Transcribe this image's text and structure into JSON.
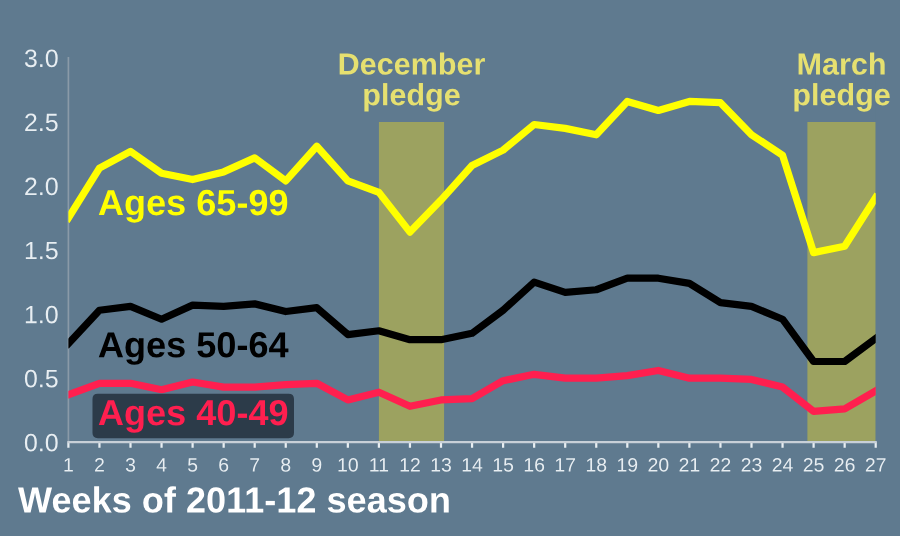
{
  "chart_data": {
    "type": "line",
    "xlabel": "Weeks of 2011-12 season",
    "x": [
      1,
      2,
      3,
      4,
      5,
      6,
      7,
      8,
      9,
      10,
      11,
      12,
      13,
      14,
      15,
      16,
      17,
      18,
      19,
      20,
      21,
      22,
      23,
      24,
      25,
      26,
      27
    ],
    "series": [
      {
        "name": "Ages 65-99",
        "color": "#ffff00",
        "values": [
          1.75,
          2.14,
          2.27,
          2.1,
          2.05,
          2.11,
          2.22,
          2.04,
          2.31,
          2.04,
          1.95,
          1.64,
          1.89,
          2.16,
          2.28,
          2.48,
          2.45,
          2.4,
          2.66,
          2.59,
          2.66,
          2.65,
          2.4,
          2.24,
          1.48,
          1.53,
          1.91
        ]
      },
      {
        "name": "Ages 50-64",
        "color": "#000000",
        "values": [
          0.77,
          1.03,
          1.06,
          0.96,
          1.07,
          1.06,
          1.08,
          1.02,
          1.05,
          0.84,
          0.87,
          0.8,
          0.8,
          0.85,
          1.03,
          1.25,
          1.17,
          1.19,
          1.28,
          1.28,
          1.24,
          1.09,
          1.06,
          0.96,
          0.63,
          0.63,
          0.81
        ]
      },
      {
        "name": "Ages 40-49",
        "color": "#ff1f4f",
        "values": [
          0.37,
          0.46,
          0.46,
          0.41,
          0.47,
          0.43,
          0.43,
          0.45,
          0.46,
          0.33,
          0.39,
          0.28,
          0.33,
          0.34,
          0.48,
          0.53,
          0.5,
          0.5,
          0.52,
          0.56,
          0.5,
          0.5,
          0.49,
          0.43,
          0.24,
          0.26,
          0.4
        ]
      }
    ],
    "bands": [
      {
        "axis": "x",
        "from": 11.0,
        "to": 13.1,
        "label": "December\npledge",
        "color": "#b0b050"
      },
      {
        "axis": "x",
        "from": 24.8,
        "to": 27.0,
        "label": "March\npledge",
        "color": "#b0b050"
      }
    ],
    "xlim": [
      1,
      27
    ],
    "xticks": [
      1,
      2,
      3,
      4,
      5,
      6,
      7,
      8,
      9,
      10,
      11,
      12,
      13,
      14,
      15,
      16,
      17,
      18,
      19,
      20,
      21,
      22,
      23,
      24,
      25,
      26,
      27
    ],
    "ylim": [
      0,
      3
    ],
    "yticks": [
      {
        "value": 0,
        "label": "0.0"
      },
      {
        "value": 0.5,
        "label": "0.5"
      },
      {
        "value": 1,
        "label": "1.0"
      },
      {
        "value": 1.5,
        "label": "1.5"
      },
      {
        "value": 2,
        "label": "2.0"
      },
      {
        "value": 2.5,
        "label": "2.5"
      },
      {
        "value": 3,
        "label": "3.0"
      }
    ],
    "grid": false,
    "legend": false,
    "marker": "none",
    "line_style": "solid"
  }
}
